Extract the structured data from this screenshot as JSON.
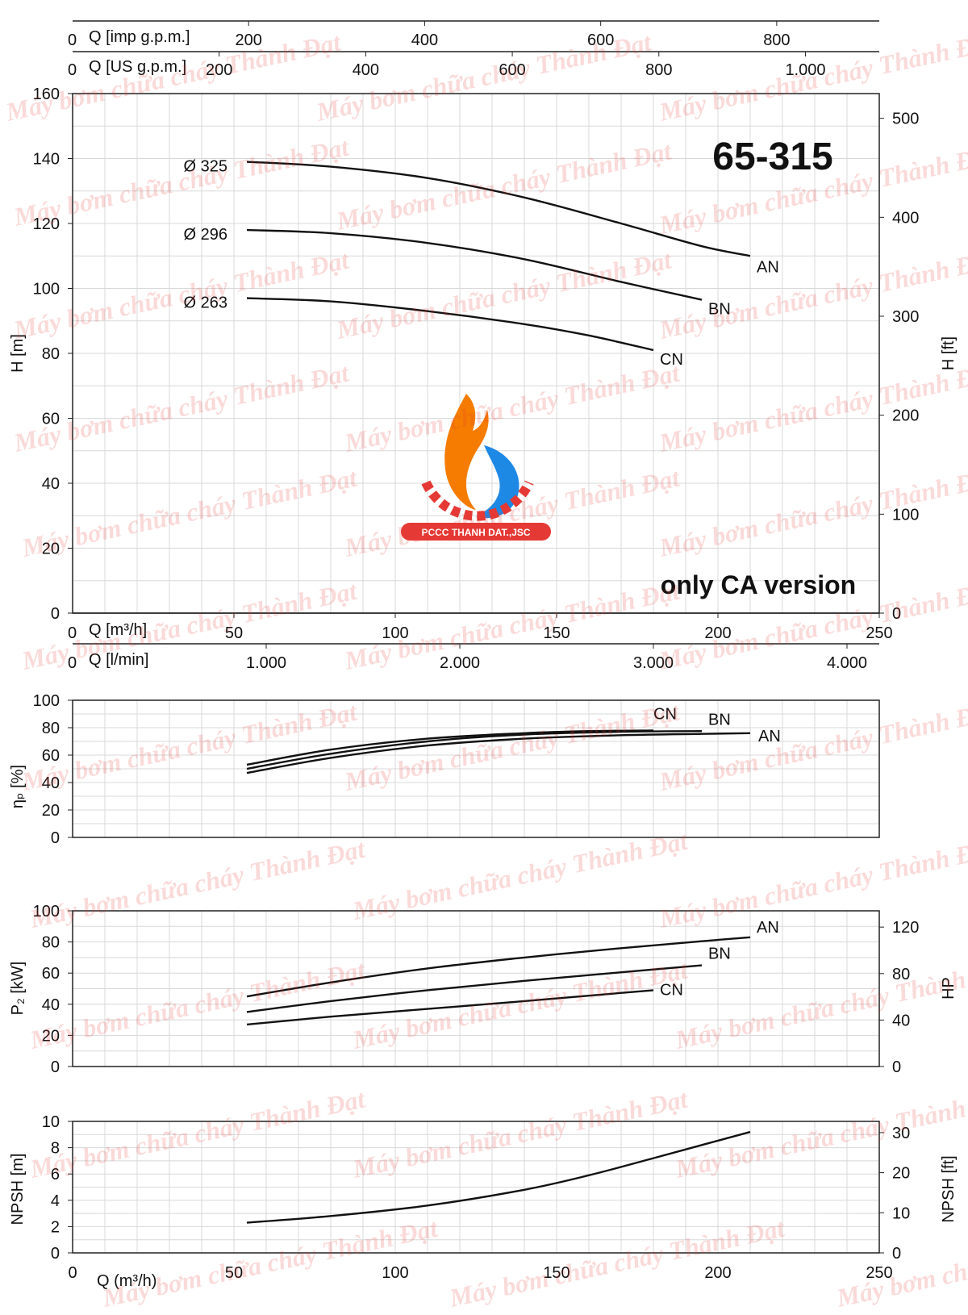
{
  "colors": {
    "curve": "#111111",
    "grid": "#d8d8d8",
    "watermark": "#e53935",
    "logo_fire": "#f57c00",
    "logo_water": "#1e88e5",
    "logo_badge": "#e53935"
  },
  "top_scales": [
    {
      "label": "Q [imp g.p.m.]",
      "zero": "0",
      "ticks": [
        {
          "v": 200,
          "t": "200"
        },
        {
          "v": 400,
          "t": "400"
        },
        {
          "v": 600,
          "t": "600"
        },
        {
          "v": 800,
          "t": "800"
        }
      ],
      "unit_per_m3h": 3.666
    },
    {
      "label": "Q [US g.p.m.]",
      "zero": "0",
      "ticks": [
        {
          "v": 200,
          "t": "200"
        },
        {
          "v": 400,
          "t": "400"
        },
        {
          "v": 600,
          "t": "600"
        },
        {
          "v": 800,
          "t": "800"
        },
        {
          "v": 1000,
          "t": "1.000"
        }
      ],
      "unit_per_m3h": 4.403
    }
  ],
  "mid_scales": [
    {
      "label": "Q [m³/h]",
      "zero": "0",
      "ticks": [
        {
          "v": 50,
          "t": "50"
        },
        {
          "v": 100,
          "t": "100"
        },
        {
          "v": 150,
          "t": "150"
        },
        {
          "v": 200,
          "t": "200"
        },
        {
          "v": 250,
          "t": "250"
        }
      ],
      "unit_per_m3h": 1
    },
    {
      "label": "Q [l/min]",
      "zero": "0",
      "ticks": [
        {
          "v": 1000,
          "t": "1.000"
        },
        {
          "v": 2000,
          "t": "2.000"
        },
        {
          "v": 3000,
          "t": "3.000"
        },
        {
          "v": 4000,
          "t": "4.000"
        }
      ],
      "unit_per_m3h": 16.667
    }
  ],
  "model_title": "65-315",
  "note": "only CA version",
  "bottom_axis": {
    "label": "Q (m³/h)",
    "ticks": [
      "0",
      "50",
      "100",
      "150",
      "200",
      "250"
    ]
  },
  "chart_data": [
    {
      "type": "line",
      "xlabel": "Q [m³/h]",
      "ylabel": "H [m]",
      "y2label": "H [ft]",
      "xlim": [
        0,
        250
      ],
      "ylim": [
        0,
        160
      ],
      "y2lim": [
        0,
        525
      ],
      "yticks": [
        "0",
        "20",
        "40",
        "60",
        "80",
        "100",
        "120",
        "140",
        "160"
      ],
      "y2ticks": [
        "0",
        "100",
        "200",
        "300",
        "400",
        "500"
      ],
      "grid": true,
      "series": [
        {
          "name": "AN",
          "diameter_label": "Ø 325",
          "x": [
            54,
            80,
            110,
            140,
            170,
            195,
            210
          ],
          "y": [
            139,
            137.5,
            134,
            128,
            120,
            113,
            110
          ]
        },
        {
          "name": "BN",
          "diameter_label": "Ø 296",
          "x": [
            54,
            80,
            110,
            140,
            170,
            195
          ],
          "y": [
            118,
            117,
            114,
            109,
            102,
            96.5
          ]
        },
        {
          "name": "CN",
          "diameter_label": "Ø 263",
          "x": [
            54,
            80,
            110,
            140,
            160,
            180
          ],
          "y": [
            97,
            96,
            93,
            89,
            85.5,
            81
          ]
        }
      ]
    },
    {
      "type": "line",
      "ylabel": "ηₚ [%]",
      "xlim": [
        0,
        250
      ],
      "ylim": [
        0,
        100
      ],
      "yticks": [
        "0",
        "20",
        "40",
        "60",
        "80",
        "100"
      ],
      "grid": true,
      "series": [
        {
          "name": "CN",
          "x": [
            54,
            80,
            110,
            140,
            160,
            180
          ],
          "y": [
            53,
            64,
            72,
            76,
            77.5,
            78
          ]
        },
        {
          "name": "BN",
          "x": [
            54,
            80,
            110,
            140,
            170,
            195
          ],
          "y": [
            50,
            61,
            70,
            75,
            77,
            77.5
          ]
        },
        {
          "name": "AN",
          "x": [
            54,
            80,
            110,
            140,
            170,
            195,
            210
          ],
          "y": [
            47,
            58,
            67,
            72,
            74.5,
            75.5,
            76
          ]
        }
      ]
    },
    {
      "type": "line",
      "ylabel": "P₂ [kW]",
      "y2label": "HP",
      "xlim": [
        0,
        250
      ],
      "ylim": [
        0,
        100
      ],
      "y2lim": [
        0,
        134
      ],
      "yticks": [
        "0",
        "20",
        "40",
        "60",
        "80",
        "100"
      ],
      "y2ticks": [
        "0",
        "40",
        "80",
        "120"
      ],
      "grid": true,
      "series": [
        {
          "name": "AN",
          "x": [
            54,
            80,
            110,
            140,
            170,
            195,
            210
          ],
          "y": [
            45,
            54,
            63,
            70,
            76,
            80.5,
            83
          ]
        },
        {
          "name": "BN",
          "x": [
            54,
            80,
            110,
            140,
            170,
            195
          ],
          "y": [
            35,
            42,
            49,
            55,
            60.5,
            65
          ]
        },
        {
          "name": "CN",
          "x": [
            54,
            80,
            110,
            140,
            160,
            180
          ],
          "y": [
            27,
            32,
            37,
            42,
            45.5,
            49
          ]
        }
      ]
    },
    {
      "type": "line",
      "ylabel": "NPSH [m]",
      "y2label": "NPSH [ft]",
      "xlim": [
        0,
        250
      ],
      "ylim": [
        0,
        10
      ],
      "y2lim": [
        0,
        32.8
      ],
      "yticks": [
        "0",
        "2",
        "4",
        "6",
        "8",
        "10"
      ],
      "y2ticks": [
        "0",
        "10",
        "20",
        "30"
      ],
      "grid": true,
      "series": [
        {
          "name": "",
          "x": [
            54,
            80,
            110,
            140,
            160,
            180,
            195,
            210
          ],
          "y": [
            2.3,
            2.8,
            3.6,
            4.8,
            5.9,
            7.2,
            8.2,
            9.2
          ]
        }
      ]
    }
  ],
  "watermark": {
    "text": "Máy bơm chữa cháy Thành Đạt"
  },
  "logo": {
    "badge_text": "PCCC THANH DAT.,JSC"
  }
}
